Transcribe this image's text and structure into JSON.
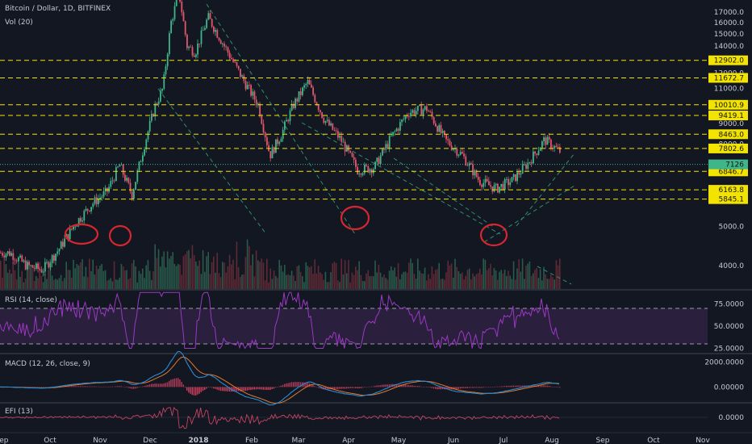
{
  "panes": {
    "main": {
      "title": "Bitcoin / Dollar, 1D, BITFINEX",
      "subtitle": "Vol (20)"
    },
    "rsi": {
      "label": "RSI (14, close)"
    },
    "macd": {
      "label": "MACD (12, 26, close, 9)"
    },
    "efi": {
      "label": "EFI (13)"
    }
  },
  "colors": {
    "background": "#131722",
    "up": "#3fb58a",
    "down": "#e0566d",
    "level_line": "#f2e300",
    "level_label_bg": "#f2e300",
    "last_price_bg": "#3fb58a",
    "rsi_line": "#9b38c4",
    "rsi_band": "#2a1f3d",
    "macd_line": "#2c8ccf",
    "signal_line": "#e07a30",
    "efi_line": "#c24460",
    "trendline": "#2f8f6a",
    "annotation_circle": "#d7262f"
  },
  "chart_data": [
    {
      "type": "candlestick",
      "title": "Bitcoin / Dollar, 1D, BITFINEX",
      "x_ticks": [
        "Sep",
        "Oct",
        "Nov",
        "Dec",
        "2018",
        "Feb",
        "Mar",
        "Apr",
        "May",
        "Jun",
        "Jul",
        "Aug",
        "Sep",
        "Oct",
        "Nov"
      ],
      "y_scale": "log",
      "y_ticks": [
        4000,
        5000,
        6000,
        7000,
        8000,
        9000,
        10000,
        11000,
        12000,
        13000,
        14000,
        15000,
        16000,
        17000
      ],
      "y_tick_labels": [
        "4000.0",
        "5000.0",
        "6000.0",
        "7000.0",
        "8000.0",
        "9000.0",
        "10000.0",
        "11000.0",
        "12000.0",
        "13000.0",
        "14000.0",
        "15000.0",
        "16000.0",
        "17000.0"
      ],
      "ylim": [
        3500,
        18200
      ],
      "horizontal_levels": [
        {
          "value": 12902.0,
          "label": "12902.0"
        },
        {
          "value": 11672.7,
          "label": "11672.7"
        },
        {
          "value": 10010.9,
          "label": "10010.9"
        },
        {
          "value": 9419.1,
          "label": "9419.1"
        },
        {
          "value": 8463.0,
          "label": "8463.0"
        },
        {
          "value": 7802.6,
          "label": "7802.6"
        },
        {
          "value": 6846.7,
          "label": "6846.7"
        },
        {
          "value": 6163.8,
          "label": "6163.8"
        },
        {
          "value": 5845.1,
          "label": "5845.1"
        }
      ],
      "last_price": 7126,
      "close_path": [
        [
          "Sep",
          4300
        ],
        [
          "Sep",
          4000
        ],
        [
          "Sep",
          3900
        ],
        [
          "Oct",
          4400
        ],
        [
          "Oct",
          5100
        ],
        [
          "Oct",
          5700
        ],
        [
          "Nov",
          6100
        ],
        [
          "Nov",
          7100
        ],
        [
          "Nov",
          6000
        ],
        [
          "Nov",
          8000
        ],
        [
          "Dec",
          9900
        ],
        [
          "Dec",
          11000
        ],
        [
          "Dec",
          16000
        ],
        [
          "Dec",
          19000
        ],
        [
          "Dec",
          14000
        ],
        [
          "Dec",
          13500
        ],
        [
          "2018",
          16500
        ],
        [
          "2018",
          13800
        ],
        [
          "2018",
          11500
        ],
        [
          "Feb",
          10000
        ],
        [
          "Feb",
          7500
        ],
        [
          "Feb",
          8500
        ],
        [
          "Feb",
          10000
        ],
        [
          "Mar",
          11400
        ],
        [
          "Mar",
          9200
        ],
        [
          "Mar",
          8200
        ],
        [
          "Apr",
          6900
        ],
        [
          "Apr",
          7000
        ],
        [
          "Apr",
          8300
        ],
        [
          "May",
          9600
        ],
        [
          "May",
          9800
        ],
        [
          "May",
          8200
        ],
        [
          "Jun",
          7500
        ],
        [
          "Jun",
          6500
        ],
        [
          "Jun",
          6200
        ],
        [
          "Jul",
          6500
        ],
        [
          "Jul",
          7200
        ],
        [
          "Jul",
          8200
        ],
        [
          "Aug",
          7500
        ],
        [
          "Aug",
          7126
        ]
      ]
    },
    {
      "type": "line",
      "title": "RSI (14, close)",
      "y_ticks": [
        25,
        50,
        75
      ],
      "y_tick_labels": [
        "25.0000",
        "50.0000",
        "75.0000"
      ],
      "ylim": [
        20,
        90
      ],
      "bands": [
        30,
        70
      ],
      "end_value": 45
    },
    {
      "type": "line",
      "title": "MACD (12, 26, close, 9)",
      "y_ticks": [
        0,
        2000
      ],
      "y_tick_labels": [
        "0.00000",
        "2000.0000"
      ],
      "ylim": [
        -1200,
        2600
      ]
    },
    {
      "type": "line",
      "title": "EFI (13)",
      "y_ticks": [
        0
      ],
      "y_tick_labels": [
        "0.0000"
      ]
    }
  ]
}
